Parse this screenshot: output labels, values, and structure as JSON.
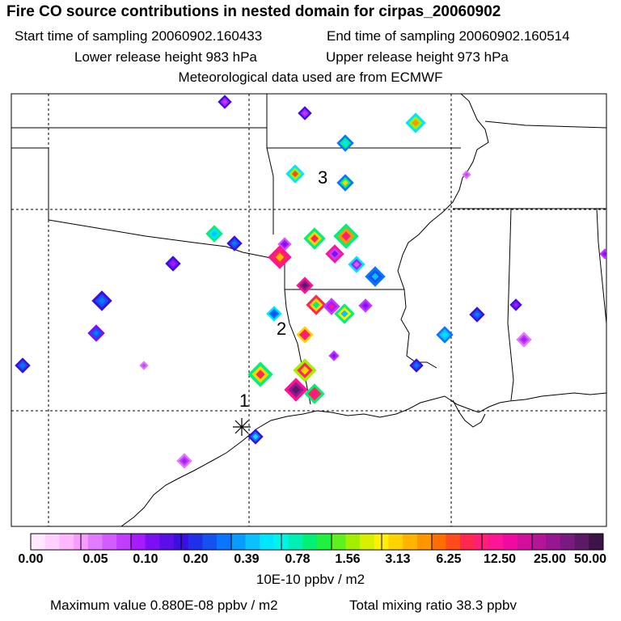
{
  "header": {
    "title": "Fire CO source contributions in nested domain for cirpas_20060902",
    "start_time": "Start time of sampling 20060902.160433",
    "end_time": "End time of sampling 20060902.160514",
    "lower_height": "Lower release height  983 hPa",
    "upper_height": "Upper release height  973 hPa",
    "met_data": "Meteorological data used are from ECMWF"
  },
  "map": {
    "point_labels": [
      "1",
      "2",
      "3"
    ]
  },
  "colorbar": {
    "colors": [
      "#ffe9ff",
      "#ffd1ff",
      "#ffb8ff",
      "#f79cff",
      "#e07cff",
      "#d15cff",
      "#c23cff",
      "#a61cff",
      "#7d0ff6",
      "#5a0fe8",
      "#3a10e0",
      "#2030e8",
      "#1550f0",
      "#0a75ff",
      "#0a9bff",
      "#0ac0ff",
      "#00e6ff",
      "#00f5e8",
      "#00f0b4",
      "#00f078",
      "#20f040",
      "#60f020",
      "#a0f000",
      "#d8f000",
      "#fff000",
      "#ffd200",
      "#ffb400",
      "#ff9600",
      "#ff6e00",
      "#ff4b1e",
      "#ff2850",
      "#ff1e78",
      "#ff1496",
      "#f00aa0",
      "#d2109c",
      "#b41496",
      "#961890",
      "#781a80",
      "#5a1a66",
      "#3c1446"
    ],
    "tick_labels": [
      "0.00",
      "0.05",
      "0.10",
      "0.20",
      "0.39",
      "0.78",
      "1.56",
      "3.13",
      "6.25",
      "12.50",
      "25.00",
      "50.00"
    ],
    "units": "10E-10 ppbv / m2"
  },
  "footer": {
    "max_value": "Maximum value  0.880E-08 ppbv / m2",
    "total_mixing": "Total mixing ratio       38.3 ppbv"
  }
}
